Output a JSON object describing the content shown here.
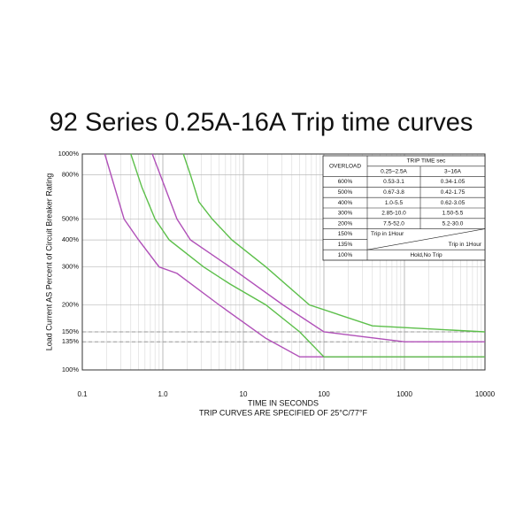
{
  "chart_data": {
    "type": "line",
    "title": "92 Series 0.25A-16A Trip time curves",
    "xlabel": "TIME IN SECONDS",
    "note": "TRIP CURVES ARE SPECIFIED OF 25°C/77°F",
    "ylabel": "Load Current AS Percent of Circuit Breaker Rating",
    "xscale": "log",
    "yscale": "log",
    "grid": true,
    "xlim": [
      0.1,
      10000
    ],
    "ylim": [
      100,
      1000
    ],
    "xticks": [
      0.1,
      {
        "value": 1,
        "label": "1.0"
      },
      10,
      100,
      1000,
      10000
    ],
    "yticks": [
      {
        "value": 100,
        "label": "100%"
      },
      {
        "value": 135,
        "label": "135%"
      },
      {
        "value": 150,
        "label": "150%"
      },
      {
        "value": 200,
        "label": "200%"
      },
      {
        "value": 300,
        "label": "300%"
      },
      {
        "value": 400,
        "label": "400%"
      },
      {
        "value": 500,
        "label": "500%"
      },
      {
        "value": 800,
        "label": "800%"
      },
      {
        "value": 1000,
        "label": "1000%"
      }
    ],
    "reference_lines": [
      135,
      150
    ],
    "series": [
      {
        "color": "#b050b8",
        "x": [
          0.19,
          0.33,
          0.5,
          0.9,
          1.5,
          5,
          19,
          50,
          10000
        ],
        "values": [
          1000,
          500,
          400,
          300,
          280,
          200,
          140,
          115,
          115
        ]
      },
      {
        "color": "#5cbf4a",
        "x": [
          0.4,
          0.55,
          0.8,
          1.2,
          3.2,
          6.8,
          19,
          50,
          100,
          10000
        ],
        "values": [
          1000,
          700,
          500,
          400,
          300,
          250,
          200,
          150,
          115,
          115
        ]
      },
      {
        "color": "#b050b8",
        "x": [
          0.74,
          1.5,
          2.2,
          6.8,
          31,
          100,
          1000,
          10000
        ],
        "values": [
          1000,
          500,
          400,
          300,
          200,
          150,
          135,
          135
        ]
      },
      {
        "color": "#5cbf4a",
        "x": [
          1.8,
          2.2,
          2.8,
          4.1,
          7.2,
          19,
          66,
          400,
          10000
        ],
        "values": [
          1000,
          800,
          600,
          500,
          400,
          300,
          200,
          160,
          150
        ]
      }
    ],
    "table": {
      "overload": "OVERLOAD",
      "trip_time": "TRIP TIME sec",
      "col_a": "0.25~2.5A",
      "col_b": "3~16A",
      "rows": [
        [
          "600%",
          "0.53-3.1",
          "0.34-1.05"
        ],
        [
          "500%",
          "0.67-3.8",
          "0.42-1.75"
        ],
        [
          "400%",
          "1.0-5.5",
          "0.62-3.05"
        ],
        [
          "300%",
          "2.85-10.0",
          "1.50-5.5"
        ],
        [
          "200%",
          "7.5-52.0",
          "5.2-30.0"
        ]
      ],
      "row_150": [
        "150%",
        "Trip in 1Hour"
      ],
      "row_135": [
        "135%",
        "Trip in 1Hour"
      ],
      "row_100": [
        "100%",
        "Hold,No Trip"
      ]
    }
  }
}
